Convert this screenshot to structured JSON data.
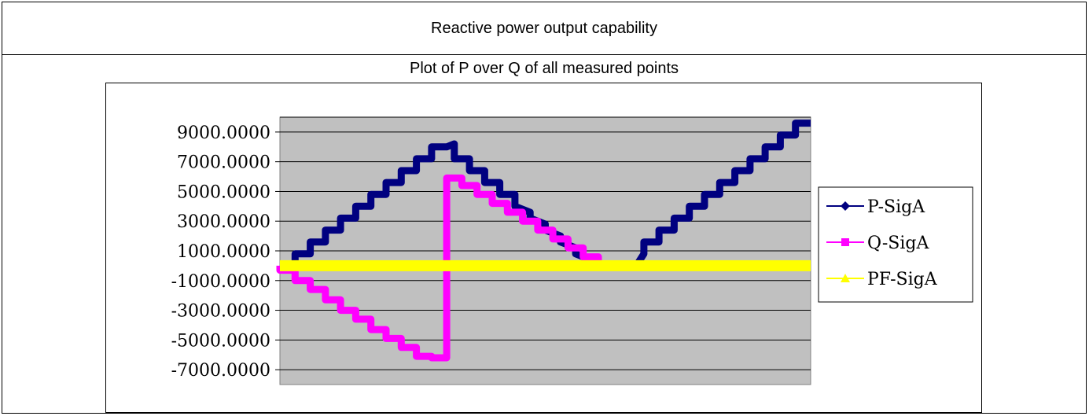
{
  "header": {
    "title": "Reactive power output capability"
  },
  "chart_title": "Plot of P over Q of all measured points",
  "chart_data": {
    "type": "line",
    "ylim": [
      -8000,
      10000
    ],
    "y_ticks": [
      "9000.0000",
      "7000.0000",
      "5000.0000",
      "3000.0000",
      "1000.0000",
      "-1000.0000",
      "-3000.0000",
      "-5000.0000",
      "-7000.0000"
    ],
    "y_tick_values": [
      9000,
      7000,
      5000,
      3000,
      1000,
      -1000,
      -3000,
      -5000,
      -7000
    ],
    "grid": true,
    "legend_position": "right",
    "x_count": 80,
    "series": [
      {
        "name": "P-SigA",
        "color": "#000080",
        "marker": "diamond",
        "values": [
          0,
          0,
          800,
          800,
          1600,
          1600,
          2400,
          2400,
          3200,
          3200,
          4000,
          4000,
          4800,
          4800,
          5600,
          5600,
          6400,
          6400,
          7200,
          7200,
          8000,
          8000,
          8200,
          7200,
          7200,
          6400,
          6400,
          5600,
          5600,
          4800,
          4800,
          4000,
          3600,
          3200,
          2800,
          2400,
          2000,
          1600,
          1200,
          800,
          400,
          0,
          0,
          0,
          0,
          800,
          1600,
          1600,
          2400,
          2400,
          3200,
          3200,
          4000,
          4000,
          4800,
          4800,
          5600,
          5600,
          6400,
          6400,
          7200,
          7200,
          8000,
          8000,
          8800,
          8800,
          9600,
          9600
        ],
        "step_x": [
          0,
          2,
          2,
          4,
          4,
          6,
          6,
          8,
          8,
          10,
          10,
          12,
          12,
          14,
          14,
          16,
          16,
          18,
          18,
          20,
          20,
          22,
          23,
          23,
          25,
          25,
          27,
          27,
          29,
          29,
          31,
          31,
          33,
          33,
          35,
          35,
          37,
          37,
          39,
          39,
          41,
          41,
          43,
          45,
          47,
          48,
          48,
          50,
          50,
          52,
          52,
          54,
          54,
          56,
          56,
          58,
          58,
          60,
          60,
          62,
          62,
          64,
          64,
          66,
          66,
          68,
          68,
          70
        ]
      },
      {
        "name": "Q-SigA",
        "color": "#ff00ff",
        "marker": "square",
        "values": [
          0,
          -300,
          -300,
          -1000,
          -1000,
          -1600,
          -1600,
          -2300,
          -2300,
          -3000,
          -3000,
          -3600,
          -3600,
          -4300,
          -4300,
          -4900,
          -4900,
          -5500,
          -5500,
          -6100,
          -6100,
          -6200,
          -6200,
          5900,
          5900,
          5400,
          5400,
          4800,
          4800,
          4200,
          4200,
          3600,
          3600,
          3000,
          3000,
          2400,
          2400,
          1800,
          1800,
          1200,
          1200,
          600,
          600,
          0,
          0
        ],
        "step_x": [
          0,
          0,
          2,
          2,
          4,
          4,
          6,
          6,
          8,
          8,
          10,
          10,
          12,
          12,
          14,
          14,
          16,
          16,
          18,
          18,
          20,
          20,
          22,
          22,
          24,
          24,
          26,
          26,
          28,
          28,
          30,
          30,
          32,
          32,
          34,
          34,
          36,
          36,
          38,
          38,
          40,
          40,
          42,
          42,
          44
        ]
      },
      {
        "name": "PF-SigA",
        "color": "#ffff00",
        "marker": "triangle",
        "values": [
          0,
          0
        ],
        "step_x": [
          0,
          70
        ]
      }
    ]
  }
}
